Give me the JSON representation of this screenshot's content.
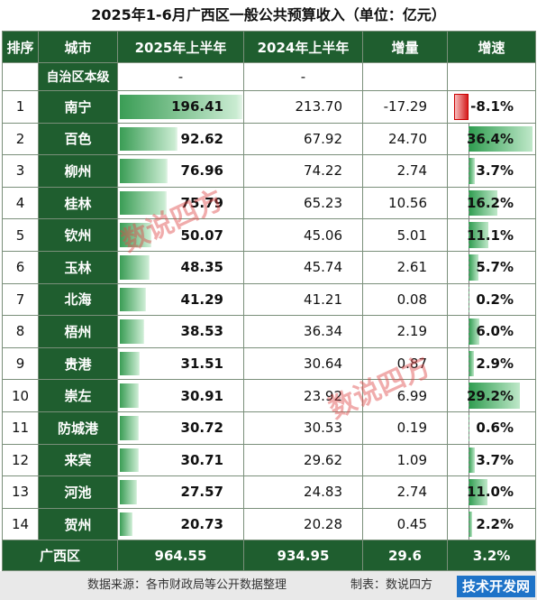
{
  "title": "2025年1-6月广西区一般公共预算收入（单位：亿元）",
  "headers": [
    "排序",
    "城市",
    "2025年上半年",
    "2024年上半年",
    "增量",
    "增速"
  ],
  "sub_row": {
    "label": "自治区本级",
    "v2025": "-",
    "v2024": "-",
    "inc": "",
    "growth": ""
  },
  "rows": [
    {
      "rank": "1",
      "city": "南宁",
      "v2025": "196.41",
      "v2024": "213.70",
      "inc": "-17.29",
      "growth": "-8.1%",
      "v2025_num": 196.41,
      "growth_num": -8.1
    },
    {
      "rank": "2",
      "city": "百色",
      "v2025": "92.62",
      "v2024": "67.92",
      "inc": "24.70",
      "growth": "36.4%",
      "v2025_num": 92.62,
      "growth_num": 36.4
    },
    {
      "rank": "3",
      "city": "柳州",
      "v2025": "76.96",
      "v2024": "74.22",
      "inc": "2.74",
      "growth": "3.7%",
      "v2025_num": 76.96,
      "growth_num": 3.7
    },
    {
      "rank": "4",
      "city": "桂林",
      "v2025": "75.79",
      "v2024": "65.23",
      "inc": "10.56",
      "growth": "16.2%",
      "v2025_num": 75.79,
      "growth_num": 16.2
    },
    {
      "rank": "5",
      "city": "钦州",
      "v2025": "50.07",
      "v2024": "45.06",
      "inc": "5.01",
      "growth": "11.1%",
      "v2025_num": 50.07,
      "growth_num": 11.1
    },
    {
      "rank": "6",
      "city": "玉林",
      "v2025": "48.35",
      "v2024": "45.74",
      "inc": "2.61",
      "growth": "5.7%",
      "v2025_num": 48.35,
      "growth_num": 5.7
    },
    {
      "rank": "7",
      "city": "北海",
      "v2025": "41.29",
      "v2024": "41.21",
      "inc": "0.08",
      "growth": "0.2%",
      "v2025_num": 41.29,
      "growth_num": 0.2
    },
    {
      "rank": "8",
      "city": "梧州",
      "v2025": "38.53",
      "v2024": "36.34",
      "inc": "2.19",
      "growth": "6.0%",
      "v2025_num": 38.53,
      "growth_num": 6.0
    },
    {
      "rank": "9",
      "city": "贵港",
      "v2025": "31.51",
      "v2024": "30.64",
      "inc": "0.87",
      "growth": "2.9%",
      "v2025_num": 31.51,
      "growth_num": 2.9
    },
    {
      "rank": "10",
      "city": "崇左",
      "v2025": "30.91",
      "v2024": "23.92",
      "inc": "6.99",
      "growth": "29.2%",
      "v2025_num": 30.91,
      "growth_num": 29.2
    },
    {
      "rank": "11",
      "city": "防城港",
      "v2025": "30.72",
      "v2024": "30.53",
      "inc": "0.19",
      "growth": "0.6%",
      "v2025_num": 30.72,
      "growth_num": 0.6
    },
    {
      "rank": "12",
      "city": "来宾",
      "v2025": "30.71",
      "v2024": "29.62",
      "inc": "1.09",
      "growth": "3.7%",
      "v2025_num": 30.71,
      "growth_num": 3.7
    },
    {
      "rank": "13",
      "city": "河池",
      "v2025": "27.57",
      "v2024": "24.83",
      "inc": "2.74",
      "growth": "11.0%",
      "v2025_num": 27.57,
      "growth_num": 11.0
    },
    {
      "rank": "14",
      "city": "贺州",
      "v2025": "20.73",
      "v2024": "20.28",
      "inc": "0.45",
      "growth": "2.2%",
      "v2025_num": 20.73,
      "growth_num": 2.2
    }
  ],
  "total": {
    "label": "广西区",
    "v2025": "964.55",
    "v2024": "934.95",
    "inc": "29.6",
    "growth": "3.2%"
  },
  "footer": {
    "source": "数据来源：各市财政局等公开数据整理",
    "maker": "制表：数说四方"
  },
  "watermark": "数说四方",
  "site_logo": "技术开发网",
  "colors": {
    "header_green": "#1f5e2f",
    "bar_green": "#3a9d55",
    "neg_red": "#d51e1e"
  }
}
